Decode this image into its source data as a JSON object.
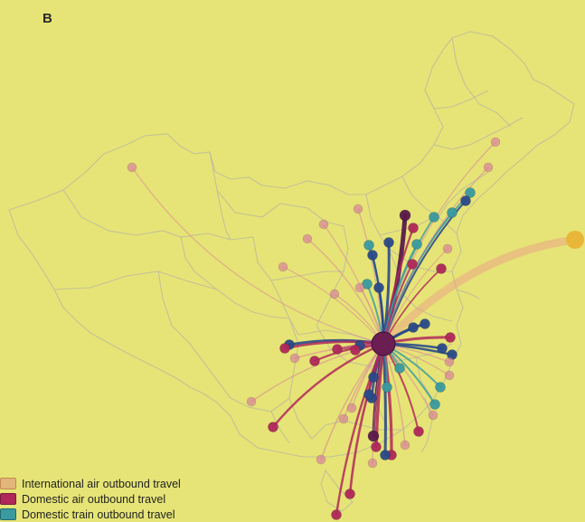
{
  "panel_label": "B",
  "legend": [
    {
      "label": "International air outbound travel",
      "color": "#e2b57a"
    },
    {
      "label": "Domestic air outbound travel",
      "color": "#b0285a"
    },
    {
      "label": "Domestic train outbound travel",
      "color": "#3a9aa0"
    }
  ],
  "colors": {
    "background": "#e6e476",
    "border": "#c9c69a",
    "international": "#e8b070",
    "international_dot": "#e9b63a",
    "air": "#b0285a",
    "air_dark": "#5a1a4c",
    "train": "#3a9aa0",
    "train_dark": "#2a4a8a",
    "hub": "#6a1e52"
  }
}
